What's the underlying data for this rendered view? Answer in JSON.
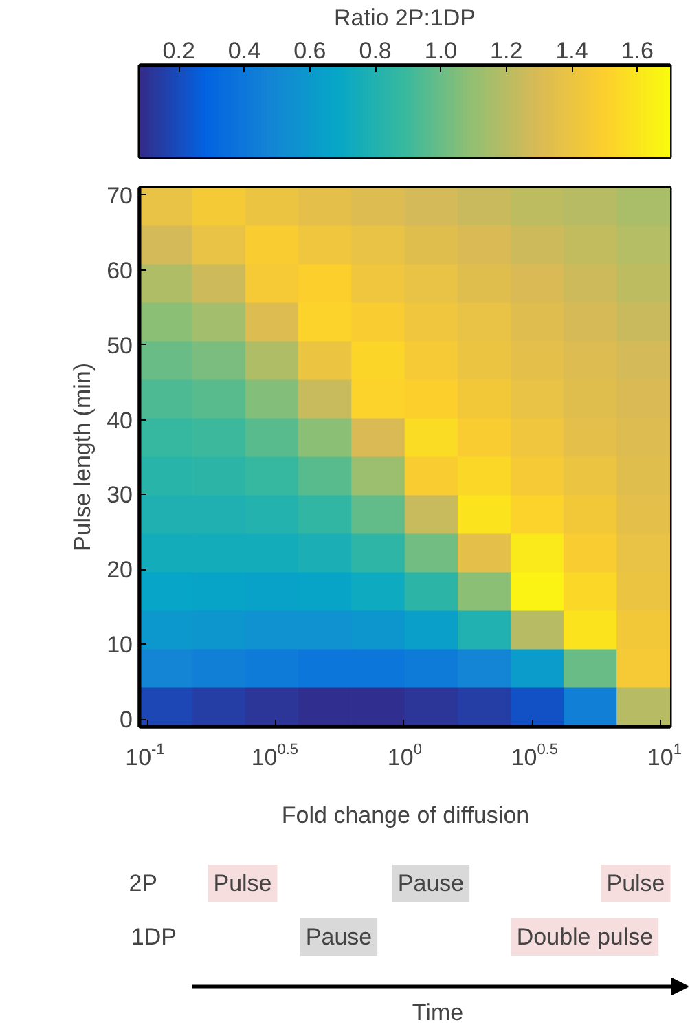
{
  "chart_data": {
    "type": "heatmap",
    "xlabel": "Fold change of diffusion",
    "ylabel": "Pulse length (min)",
    "clabel": "Ratio 2P:1DP",
    "log": "x",
    "xlim": [
      0.093,
      10.9
    ],
    "ylim": [
      -1,
      71
    ],
    "xticks": [
      {
        "value": 0.1,
        "label": "10$^{-1}$"
      },
      {
        "value": 0.31623,
        "label": "10$^{0.5}$"
      },
      {
        "value": 1,
        "label": "10$^{0}$"
      },
      {
        "value": 3.1623,
        "label": "10$^{0.5}$"
      },
      {
        "value": 10,
        "label": "10$^{1}$"
      }
    ],
    "yticks": [
      {
        "value": 0,
        "label": "0"
      },
      {
        "value": 10,
        "label": "10"
      },
      {
        "value": 20,
        "label": "20"
      },
      {
        "value": 30,
        "label": "30"
      },
      {
        "value": 40,
        "label": "40"
      },
      {
        "value": 50,
        "label": "50"
      },
      {
        "value": 60,
        "label": "60"
      },
      {
        "value": 70,
        "label": "70"
      }
    ],
    "clim": [
      0.08,
      1.7
    ],
    "cticks": [
      {
        "value": 0.2,
        "label": "0.2"
      },
      {
        "value": 0.4,
        "label": "0.4"
      },
      {
        "value": 0.6,
        "label": "0.6"
      },
      {
        "value": 0.8,
        "label": "0.8"
      },
      {
        "value": 1.0,
        "label": "1.0"
      },
      {
        "value": 1.2,
        "label": "1.2"
      },
      {
        "value": 1.4,
        "label": "1.4"
      },
      {
        "value": 1.6,
        "label": "1.6"
      }
    ],
    "x": [
      0.118,
      0.19,
      0.306,
      0.493,
      0.794,
      1.28,
      2.06,
      3.31,
      5.33,
      8.59
    ],
    "cells": [
      [
        1.38,
        1.45,
        1.4,
        1.36,
        1.32,
        1.28,
        1.25,
        1.22,
        1.2,
        1.16
      ],
      [
        1.28,
        1.38,
        1.48,
        1.42,
        1.38,
        1.34,
        1.3,
        1.26,
        1.23,
        1.19
      ],
      [
        1.18,
        1.26,
        1.46,
        1.5,
        1.42,
        1.38,
        1.34,
        1.3,
        1.26,
        1.22
      ],
      [
        1.08,
        1.14,
        1.32,
        1.52,
        1.48,
        1.42,
        1.38,
        1.33,
        1.29,
        1.25
      ],
      [
        1.0,
        1.04,
        1.18,
        1.4,
        1.53,
        1.46,
        1.4,
        1.36,
        1.32,
        1.28
      ],
      [
        0.94,
        0.96,
        1.06,
        1.24,
        1.52,
        1.5,
        1.44,
        1.38,
        1.34,
        1.3
      ],
      [
        0.88,
        0.9,
        0.96,
        1.08,
        1.3,
        1.56,
        1.48,
        1.42,
        1.36,
        1.32
      ],
      [
        0.83,
        0.84,
        0.88,
        0.96,
        1.12,
        1.48,
        1.54,
        1.46,
        1.4,
        1.34
      ],
      [
        0.79,
        0.79,
        0.81,
        0.86,
        0.98,
        1.24,
        1.6,
        1.52,
        1.44,
        1.36
      ],
      [
        0.74,
        0.74,
        0.74,
        0.77,
        0.85,
        1.02,
        1.36,
        1.62,
        1.48,
        1.38
      ],
      [
        0.68,
        0.67,
        0.66,
        0.67,
        0.72,
        0.84,
        1.08,
        1.66,
        1.54,
        1.4
      ],
      [
        0.6,
        0.58,
        0.56,
        0.56,
        0.58,
        0.64,
        0.8,
        1.2,
        1.6,
        1.44
      ],
      [
        0.48,
        0.45,
        0.42,
        0.4,
        0.4,
        0.42,
        0.48,
        0.62,
        1.0,
        1.46
      ],
      [
        0.18,
        0.15,
        0.12,
        0.1,
        0.1,
        0.12,
        0.15,
        0.22,
        0.45,
        1.2
      ]
    ],
    "annotations": [
      "2P",
      "Pulse",
      "Pause",
      "Pulse",
      "1DP",
      "Pause",
      "Double pulse",
      "Time"
    ]
  }
}
